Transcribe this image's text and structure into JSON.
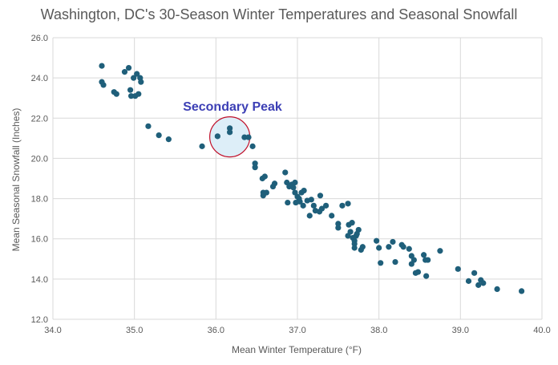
{
  "chart_data": {
    "type": "scatter",
    "title": "Washington, DC's 30-Season Winter Temperatures and Seasonal Snowfall",
    "xlabel": "Mean Winter Temperature  (°F)",
    "ylabel": "Mean Seasonal Snowfall (Inches)",
    "xlim": [
      34.0,
      40.0
    ],
    "ylim": [
      12.0,
      26.0
    ],
    "x_ticks": [
      "34.0",
      "35.0",
      "36.0",
      "37.0",
      "38.0",
      "39.0",
      "40.0"
    ],
    "y_ticks": [
      "12.0",
      "14.0",
      "16.0",
      "18.0",
      "20.0",
      "22.0",
      "24.0",
      "26.0"
    ],
    "grid": "vertical and horizontal",
    "legend": "none",
    "marker_color": "#1f5f7a",
    "annotation": {
      "text": "Secondary Peak",
      "text_color": "#3c3fb5",
      "circle_center": [
        36.17,
        21.07
      ],
      "circle_stroke": "#c0102a",
      "circle_fill": "#ddeef8"
    },
    "points": [
      [
        34.6,
        24.6
      ],
      [
        34.6,
        23.8
      ],
      [
        34.62,
        23.65
      ],
      [
        34.75,
        23.3
      ],
      [
        34.78,
        23.2
      ],
      [
        34.88,
        24.3
      ],
      [
        34.93,
        24.5
      ],
      [
        34.95,
        23.4
      ],
      [
        34.96,
        23.1
      ],
      [
        34.99,
        24.0
      ],
      [
        35.01,
        23.1
      ],
      [
        35.03,
        24.2
      ],
      [
        35.05,
        23.2
      ],
      [
        35.07,
        24.0
      ],
      [
        35.08,
        23.8
      ],
      [
        35.17,
        21.6
      ],
      [
        35.3,
        21.15
      ],
      [
        35.42,
        20.95
      ],
      [
        35.83,
        20.6
      ],
      [
        36.02,
        21.1
      ],
      [
        36.17,
        21.5
      ],
      [
        36.17,
        21.3
      ],
      [
        36.35,
        21.05
      ],
      [
        36.4,
        21.05
      ],
      [
        36.45,
        20.6
      ],
      [
        36.48,
        19.75
      ],
      [
        36.48,
        19.55
      ],
      [
        36.57,
        19.0
      ],
      [
        36.6,
        19.1
      ],
      [
        36.58,
        18.3
      ],
      [
        36.58,
        18.15
      ],
      [
        36.62,
        18.3
      ],
      [
        36.7,
        18.6
      ],
      [
        36.72,
        18.75
      ],
      [
        36.85,
        19.3
      ],
      [
        36.87,
        18.8
      ],
      [
        36.88,
        17.8
      ],
      [
        36.9,
        18.6
      ],
      [
        36.93,
        18.7
      ],
      [
        36.95,
        18.55
      ],
      [
        36.97,
        18.8
      ],
      [
        36.97,
        18.3
      ],
      [
        36.98,
        17.8
      ],
      [
        37.0,
        18.1
      ],
      [
        37.02,
        18.0
      ],
      [
        37.03,
        17.85
      ],
      [
        37.05,
        18.3
      ],
      [
        37.07,
        17.65
      ],
      [
        37.08,
        18.4
      ],
      [
        37.12,
        17.9
      ],
      [
        37.15,
        17.15
      ],
      [
        37.17,
        17.95
      ],
      [
        37.2,
        17.65
      ],
      [
        37.22,
        17.4
      ],
      [
        37.27,
        17.35
      ],
      [
        37.28,
        18.15
      ],
      [
        37.3,
        17.5
      ],
      [
        37.35,
        17.65
      ],
      [
        37.42,
        17.15
      ],
      [
        37.5,
        16.75
      ],
      [
        37.5,
        16.55
      ],
      [
        37.55,
        17.65
      ],
      [
        37.62,
        17.75
      ],
      [
        37.62,
        16.15
      ],
      [
        37.63,
        16.7
      ],
      [
        37.65,
        16.35
      ],
      [
        37.67,
        16.8
      ],
      [
        37.68,
        16.05
      ],
      [
        37.7,
        15.9
      ],
      [
        37.7,
        15.75
      ],
      [
        37.72,
        16.15
      ],
      [
        37.73,
        16.25
      ],
      [
        37.75,
        16.45
      ],
      [
        37.7,
        15.55
      ],
      [
        37.78,
        15.45
      ],
      [
        37.8,
        15.6
      ],
      [
        37.97,
        15.9
      ],
      [
        38.0,
        15.55
      ],
      [
        38.02,
        14.8
      ],
      [
        38.12,
        15.6
      ],
      [
        38.17,
        15.85
      ],
      [
        38.2,
        14.85
      ],
      [
        38.28,
        15.7
      ],
      [
        38.3,
        15.6
      ],
      [
        38.37,
        15.5
      ],
      [
        38.4,
        15.15
      ],
      [
        38.4,
        14.75
      ],
      [
        38.43,
        14.95
      ],
      [
        38.45,
        14.3
      ],
      [
        38.48,
        14.35
      ],
      [
        38.55,
        15.2
      ],
      [
        38.57,
        14.95
      ],
      [
        38.6,
        14.95
      ],
      [
        38.58,
        14.15
      ],
      [
        38.75,
        15.4
      ],
      [
        38.97,
        14.5
      ],
      [
        39.1,
        13.9
      ],
      [
        39.17,
        14.3
      ],
      [
        39.22,
        13.7
      ],
      [
        39.25,
        13.95
      ],
      [
        39.28,
        13.8
      ],
      [
        39.45,
        13.5
      ],
      [
        39.75,
        13.4
      ]
    ]
  }
}
